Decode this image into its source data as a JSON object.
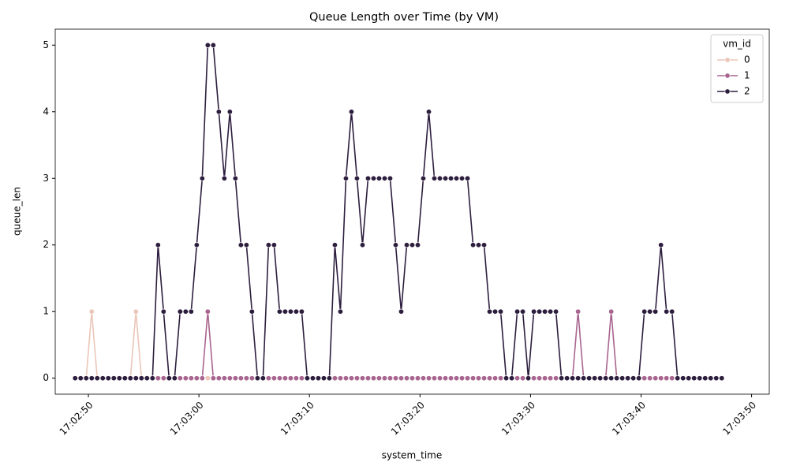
{
  "chart_data": {
    "type": "line",
    "title": "Queue Length over Time (by VM)",
    "x_label": "system_time",
    "y_label": "queue_len",
    "legend_title": "vm_id",
    "legend_position": "upper right",
    "x": [
      48.8,
      49.3,
      49.8,
      50.3,
      50.8,
      51.3,
      51.8,
      52.3,
      52.8,
      53.3,
      53.8,
      54.3,
      54.8,
      55.3,
      55.8,
      56.3,
      56.8,
      57.3,
      57.8,
      58.3,
      58.8,
      59.3,
      59.8,
      60.3,
      60.8,
      61.3,
      61.8,
      62.3,
      62.8,
      63.3,
      63.8,
      64.3,
      64.8,
      65.3,
      65.8,
      66.3,
      66.8,
      67.3,
      67.8,
      68.3,
      68.8,
      69.3,
      69.8,
      70.3,
      70.8,
      71.3,
      71.8,
      72.3,
      72.8,
      73.3,
      73.8,
      74.3,
      74.8,
      75.3,
      75.8,
      76.3,
      76.8,
      77.3,
      77.8,
      78.3,
      78.8,
      79.3,
      79.8,
      80.3,
      80.8,
      81.3,
      81.8,
      82.3,
      82.8,
      83.3,
      83.8,
      84.3,
      84.8,
      85.3,
      85.8,
      86.3,
      86.8,
      87.3,
      87.8,
      88.3,
      88.8,
      89.3,
      89.8,
      90.3,
      90.8,
      91.3,
      91.8,
      92.3,
      92.8,
      93.3,
      93.8,
      94.3,
      94.8,
      95.3,
      95.8,
      96.3,
      96.8,
      97.3,
      97.8,
      98.3,
      98.8,
      99.3,
      99.8,
      100.3,
      100.8,
      101.3,
      101.8,
      102.3,
      102.8,
      103.3,
      103.8,
      104.3,
      104.8,
      105.3,
      105.8,
      106.3,
      106.8,
      107.3
    ],
    "series": [
      {
        "name": "0",
        "color": "#ebc6b9",
        "values": [
          0,
          0,
          0,
          1,
          0,
          0,
          0,
          0,
          0,
          0,
          0,
          1,
          0,
          0,
          0,
          0,
          0,
          0,
          0,
          0,
          0,
          0,
          0,
          0,
          0,
          0,
          0,
          0,
          0,
          0,
          0,
          0,
          0,
          0,
          0,
          0,
          0,
          0,
          0,
          0,
          0,
          0,
          0,
          0,
          0,
          0,
          0,
          0,
          0,
          0,
          0,
          0,
          0,
          0,
          0,
          0,
          0,
          0,
          0,
          0,
          0,
          0,
          0,
          0,
          0,
          0,
          0,
          0,
          0,
          0,
          0,
          0,
          0,
          0,
          0,
          0,
          0,
          0,
          0,
          0,
          0,
          0,
          0,
          0,
          0,
          0,
          0,
          0,
          0,
          0,
          0,
          0,
          0,
          0,
          0,
          0,
          0,
          0,
          0,
          0,
          0,
          0,
          0,
          0,
          0,
          0,
          0,
          0,
          0,
          0,
          0,
          0,
          0,
          0,
          0,
          0,
          0,
          0
        ]
      },
      {
        "name": "1",
        "color": "#a8658f",
        "values": [
          0,
          0,
          0,
          0,
          0,
          0,
          0,
          0,
          0,
          0,
          0,
          0,
          0,
          0,
          0,
          0,
          0,
          0,
          0,
          0,
          0,
          0,
          0,
          0,
          1,
          0,
          0,
          0,
          0,
          0,
          0,
          0,
          0,
          0,
          0,
          0,
          0,
          0,
          0,
          0,
          0,
          0,
          0,
          0,
          0,
          0,
          0,
          0,
          0,
          0,
          0,
          0,
          0,
          0,
          0,
          0,
          0,
          0,
          0,
          0,
          0,
          0,
          0,
          0,
          0,
          0,
          0,
          0,
          0,
          0,
          0,
          0,
          0,
          0,
          0,
          0,
          0,
          0,
          0,
          0,
          0,
          0,
          0,
          0,
          0,
          0,
          0,
          0,
          0,
          0,
          0,
          1,
          0,
          0,
          0,
          0,
          0,
          1,
          0,
          0,
          0,
          0,
          0,
          0,
          0,
          0,
          0,
          0,
          0,
          0,
          0,
          0,
          0,
          0,
          0,
          0,
          0,
          0
        ]
      },
      {
        "name": "2",
        "color": "#2d1e3e",
        "values": [
          0,
          0,
          0,
          0,
          0,
          0,
          0,
          0,
          0,
          0,
          0,
          0,
          0,
          0,
          0,
          2,
          1,
          0,
          0,
          1,
          1,
          1,
          2,
          3,
          5,
          5,
          4,
          3,
          4,
          3,
          2,
          2,
          1,
          0,
          0,
          2,
          2,
          1,
          1,
          1,
          1,
          1,
          0,
          0,
          0,
          0,
          0,
          2,
          1,
          3,
          4,
          3,
          2,
          3,
          3,
          3,
          3,
          3,
          2,
          1,
          2,
          2,
          2,
          3,
          4,
          3,
          3,
          3,
          3,
          3,
          3,
          3,
          2,
          2,
          2,
          1,
          1,
          1,
          0,
          0,
          1,
          1,
          0,
          1,
          1,
          1,
          1,
          1,
          0,
          0,
          0,
          0,
          0,
          0,
          0,
          0,
          0,
          0,
          0,
          0,
          0,
          0,
          0,
          1,
          1,
          1,
          2,
          1,
          1,
          0,
          0,
          0,
          0,
          0,
          0,
          0,
          0,
          0
        ]
      }
    ],
    "xlim": [
      47.0,
      111.6
    ],
    "ylim": [
      -0.24,
      5.24
    ],
    "xticks": [
      {
        "value": 50,
        "label": "17:02:50"
      },
      {
        "value": 60,
        "label": "17:03:00"
      },
      {
        "value": 70,
        "label": "17:03:10"
      },
      {
        "value": 80,
        "label": "17:03:20"
      },
      {
        "value": 90,
        "label": "17:03:30"
      },
      {
        "value": 100,
        "label": "17:03:40"
      },
      {
        "value": 110,
        "label": "17:03:50"
      }
    ],
    "yticks": [
      0,
      1,
      2,
      3,
      4,
      5
    ],
    "grid": false,
    "markers": true
  }
}
